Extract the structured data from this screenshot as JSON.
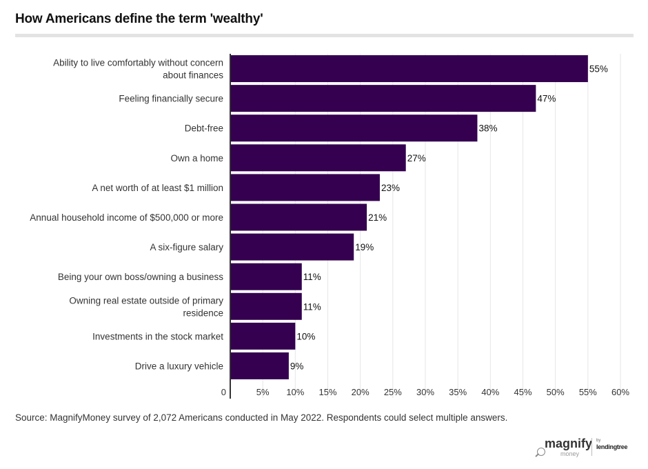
{
  "chart_data": {
    "type": "bar",
    "orientation": "horizontal",
    "title": "How Americans define the term 'wealthy'",
    "categories": [
      [
        "Ability to live comfortably without concern",
        "about finances"
      ],
      [
        "Feeling financially secure"
      ],
      [
        "Debt-free"
      ],
      [
        "Own a home"
      ],
      [
        "A net worth of at least $1 million"
      ],
      [
        "Annual household income of $500,000 or more"
      ],
      [
        "A six-figure salary"
      ],
      [
        "Being your own boss/owning a business"
      ],
      [
        "Owning real estate outside of primary",
        "residence"
      ],
      [
        "Investments in the stock market"
      ],
      [
        "Drive a luxury vehicle"
      ]
    ],
    "values": [
      55,
      47,
      38,
      27,
      23,
      21,
      19,
      11,
      11,
      10,
      9
    ],
    "value_labels": [
      "55%",
      "47%",
      "38%",
      "27%",
      "23%",
      "21%",
      "19%",
      "11%",
      "11%",
      "10%",
      "9%"
    ],
    "xlim": [
      0,
      60
    ],
    "xticks": [
      0,
      5,
      10,
      15,
      20,
      25,
      30,
      35,
      40,
      45,
      50,
      55,
      60
    ],
    "xtick_labels": [
      "0",
      "5%",
      "10%",
      "15%",
      "20%",
      "25%",
      "30%",
      "35%",
      "40%",
      "45%",
      "50%",
      "55%",
      "60%"
    ],
    "grid": true,
    "colors": {
      "bar": "#34004f",
      "grid": "#e6e6e6",
      "axis": "#333333"
    }
  },
  "source": "Source: MagnifyMoney survey of 2,072 Americans conducted in May 2022. Respondents could select multiple answers.",
  "logo": {
    "name": "magnify",
    "sub": "money",
    "by": "by",
    "brand": "lendingtree"
  }
}
